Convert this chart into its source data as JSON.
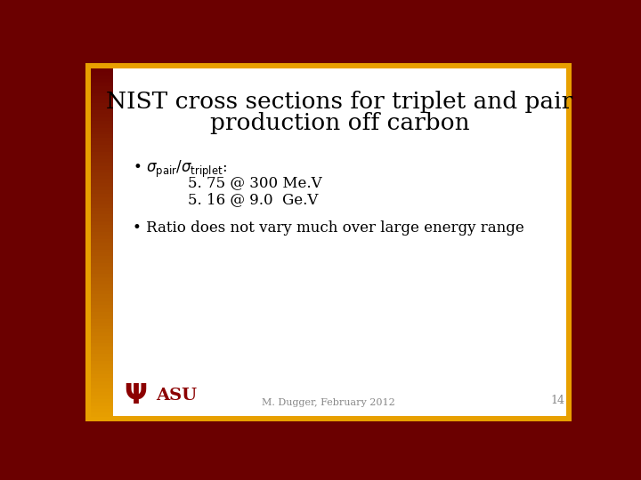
{
  "title_line1": "NIST cross sections for triplet and pair",
  "title_line2": "production off carbon",
  "bullet1_val1": "5. 75 @ 300 Me.V",
  "bullet1_val2": "5. 16 @ 9.0  Ge.V",
  "bullet2": "• Ratio does not vary much over large energy range",
  "footer": "M. Dugger, February 2012",
  "page_num": "14",
  "bg_white": "#ffffff",
  "dark_red": "#6B0000",
  "gold": "#E8A000",
  "gold_light": "#F5B800",
  "text_color": "#000000",
  "footer_color": "#888888",
  "asu_red": "#8B0000"
}
